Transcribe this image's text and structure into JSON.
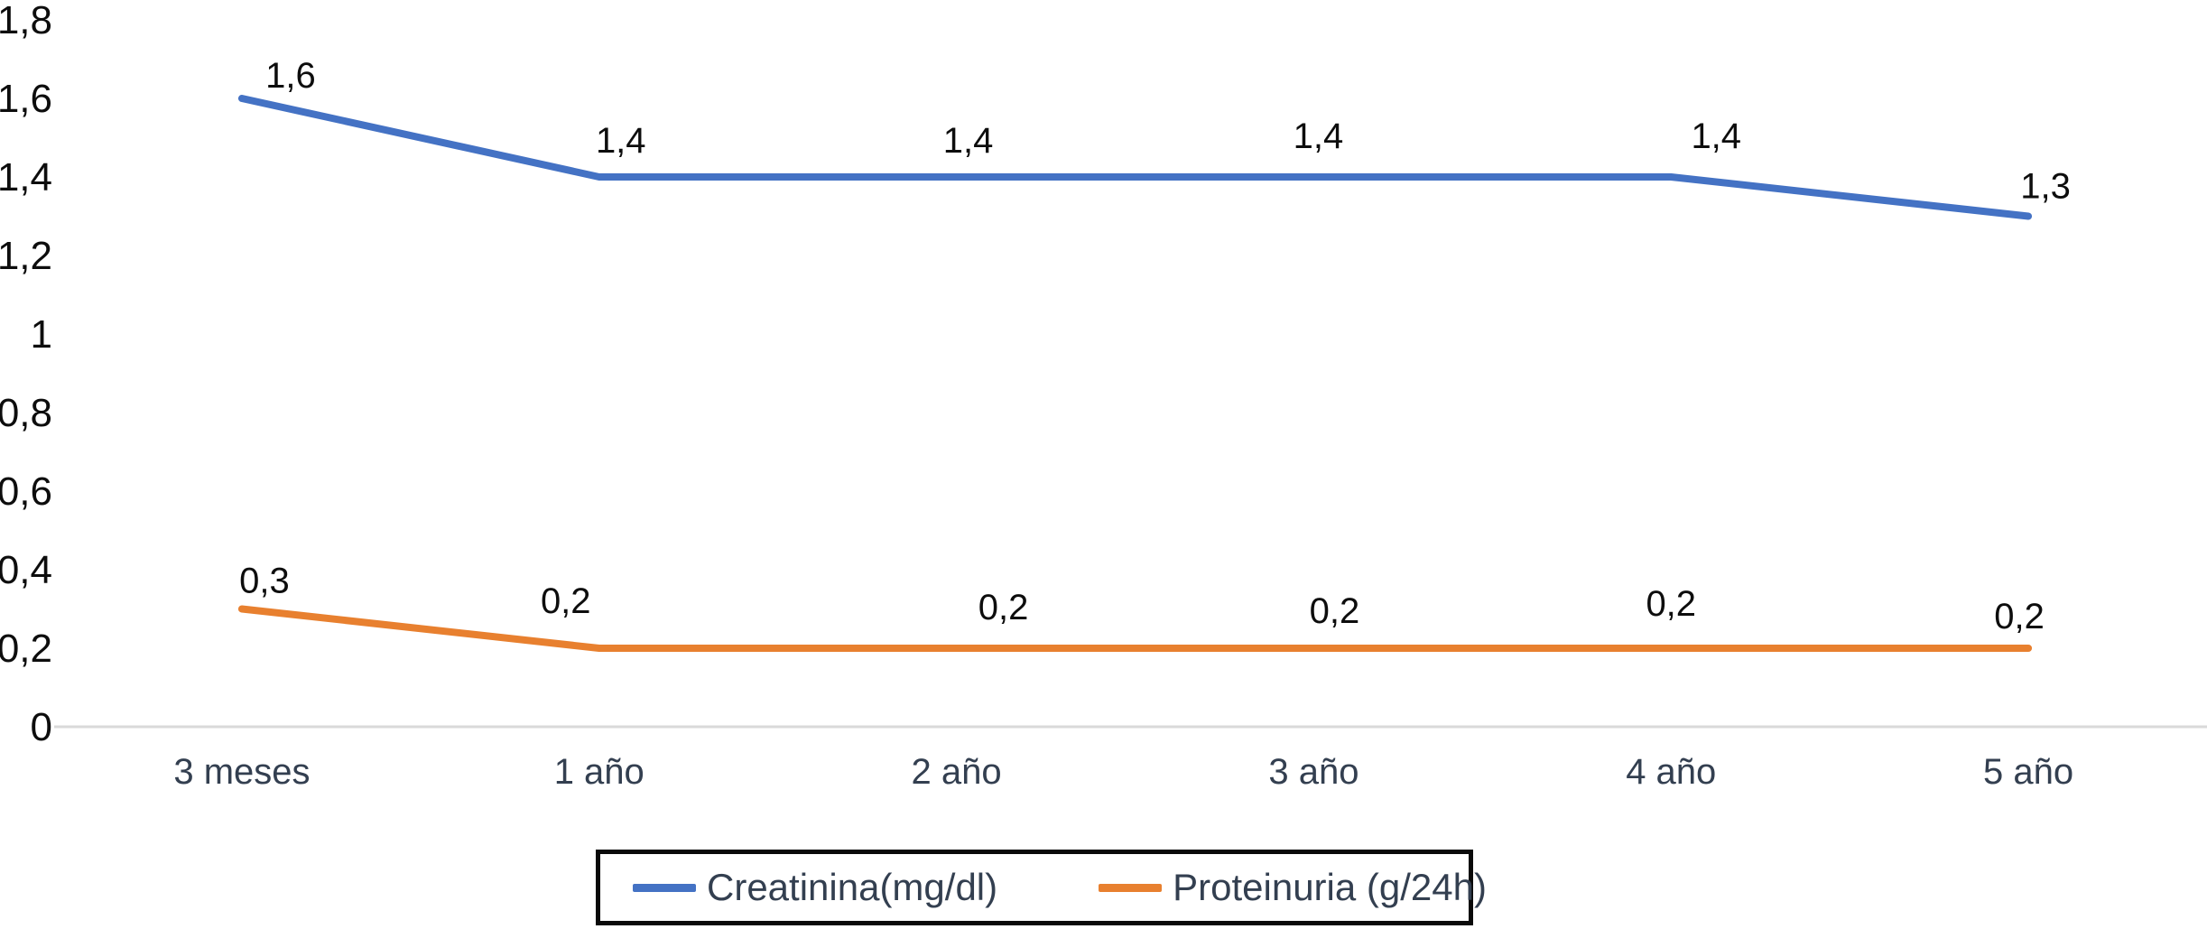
{
  "chart_data": {
    "type": "line",
    "categories": [
      "3 meses",
      "1 año",
      "2 año",
      "3 año",
      "4 año",
      "5 año"
    ],
    "series": [
      {
        "name": "Creatinina(mg/dl)",
        "color": "#4472C4",
        "values": [
          1.6,
          1.4,
          1.4,
          1.4,
          1.4,
          1.3
        ],
        "value_labels": [
          "1,6",
          "1,4",
          "1,4",
          "1,4",
          "1,4",
          "1,3"
        ]
      },
      {
        "name": "Proteinuria (g/24h)",
        "color": "#E8802F",
        "values": [
          0.3,
          0.2,
          0.2,
          0.2,
          0.2,
          0.2
        ],
        "value_labels": [
          "0,3",
          "0,2",
          "0,2",
          "0,2",
          "0,2",
          "0,2"
        ]
      }
    ],
    "y_axis": {
      "min": 0,
      "max": 1.8,
      "step": 0.2,
      "tick_labels": [
        "0",
        "0,2",
        "0,4",
        "0,6",
        "0,8",
        "1",
        "1,2",
        "1,4",
        "1,6",
        "1,8"
      ]
    },
    "ylim": [
      0,
      1.8
    ],
    "xlabel": "",
    "ylabel": "",
    "grid": false,
    "data_labels": true,
    "decimal_separator": ",",
    "legend": {
      "position": "bottom",
      "border": true,
      "entries": [
        "Creatinina(mg/dl)",
        "Proteinuria (g/24h)"
      ]
    }
  },
  "colors": {
    "background": "#ffffff",
    "axis_line": "#D9D9D9",
    "y_label_text": "#0D0D0D",
    "x_label_text": "#333F50",
    "data_label_text": "#0D0D0D",
    "legend_text": "#333F50",
    "legend_border": "#0A0A0A"
  }
}
